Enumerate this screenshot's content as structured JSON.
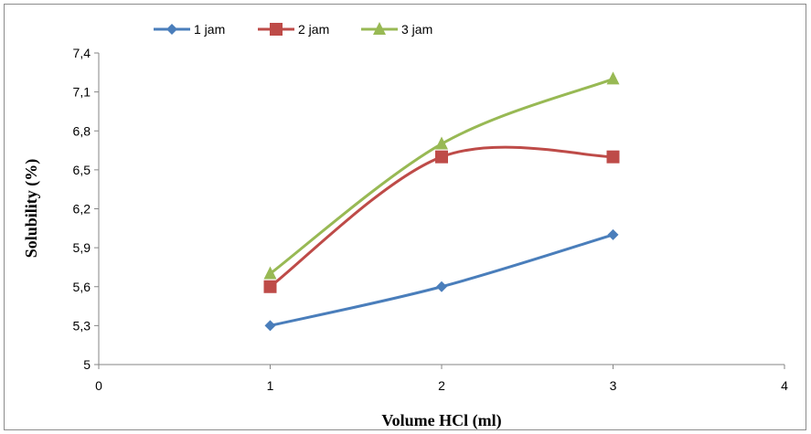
{
  "chart_data": {
    "type": "line",
    "title": "",
    "xlabel": "Volume HCl (ml)",
    "ylabel": "Solubility (%)",
    "xlim": [
      0,
      4
    ],
    "ylim": [
      5,
      7.4
    ],
    "x_ticks": [
      "0",
      "1",
      "2",
      "3",
      "4"
    ],
    "y_ticks": [
      "5",
      "5,3",
      "5,6",
      "5,9",
      "6,2",
      "6,5",
      "6,8",
      "7,1",
      "7,4"
    ],
    "x": [
      1,
      2,
      3
    ],
    "grid": false,
    "smooth": true,
    "legend_position": "top",
    "series": [
      {
        "name": "1 jam",
        "values": [
          5.3,
          5.6,
          6.0
        ],
        "color": "#4a7ebb",
        "marker": "diamond"
      },
      {
        "name": "2 jam",
        "values": [
          5.6,
          6.6,
          6.6
        ],
        "color": "#be4b48",
        "marker": "square"
      },
      {
        "name": "3 jam",
        "values": [
          5.7,
          6.7,
          7.2
        ],
        "color": "#98b954",
        "marker": "triangle"
      }
    ]
  }
}
